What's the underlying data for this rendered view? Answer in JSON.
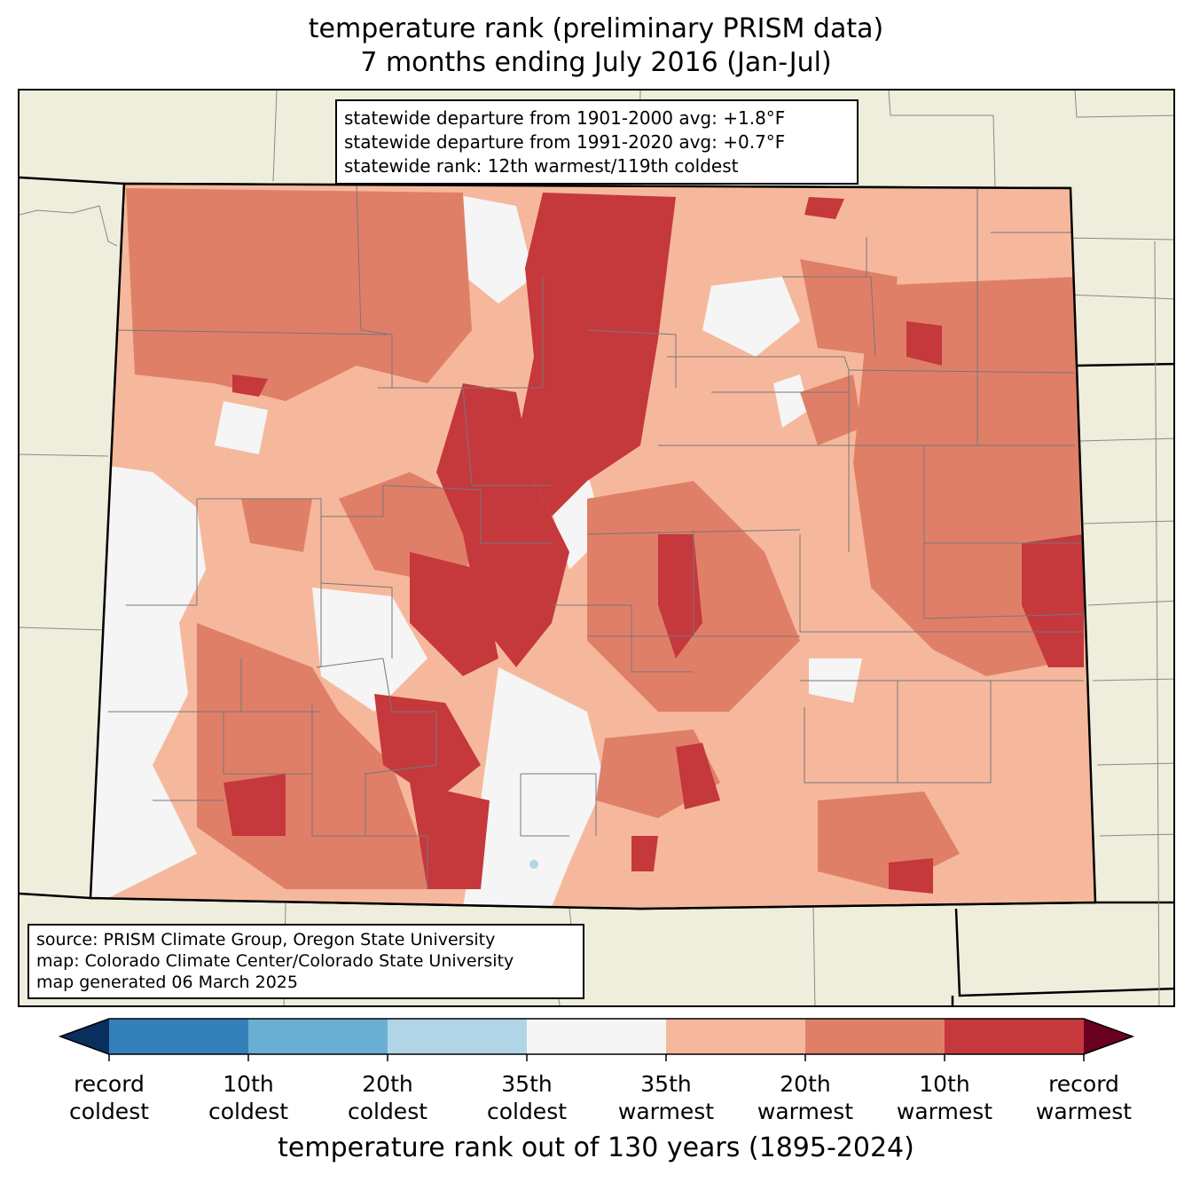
{
  "title": {
    "line1": "temperature rank (preliminary PRISM data)",
    "line2": "7 months ending July 2016 (Jan-Jul)"
  },
  "stats": {
    "line1": "statewide departure from 1901-2000 avg: +1.8°F",
    "line2": "statewide departure from 1991-2020 avg: +0.7°F",
    "line3": "statewide rank: 12th warmest/119th coldest"
  },
  "source": {
    "line1": "source: PRISM Climate Group, Oregon State University",
    "line2": "map: Colorado Climate Center/Colorado State University",
    "line3": "map generated 06 March 2025"
  },
  "colorbar": {
    "title": "temperature rank out of 130 years (1895-2024)",
    "extend_low_color": "#0a2f5e",
    "extend_high_color": "#6b0021",
    "bins": [
      {
        "color": "#3380bb"
      },
      {
        "color": "#6aaed4"
      },
      {
        "color": "#b1d5e7"
      },
      {
        "color": "#f5f5f5"
      },
      {
        "color": "#f6b89c"
      },
      {
        "color": "#e07f68"
      },
      {
        "color": "#c5383c"
      }
    ],
    "tick_labels": [
      {
        "line1": "record",
        "line2": "coldest"
      },
      {
        "line1": "10th",
        "line2": "coldest"
      },
      {
        "line1": "20th",
        "line2": "coldest"
      },
      {
        "line1": "35th",
        "line2": "coldest"
      },
      {
        "line1": "35th",
        "line2": "warmest"
      },
      {
        "line1": "20th",
        "line2": "warmest"
      },
      {
        "line1": "10th",
        "line2": "warmest"
      },
      {
        "line1": "record",
        "line2": "warmest"
      }
    ]
  },
  "map": {
    "background_land_color": "#efeddc",
    "state_fill_color": "#f6b89c",
    "dominant_warm_color": "#e07f68",
    "strong_warm_color": "#c5383c",
    "neutral_color": "#f5f5f5"
  }
}
